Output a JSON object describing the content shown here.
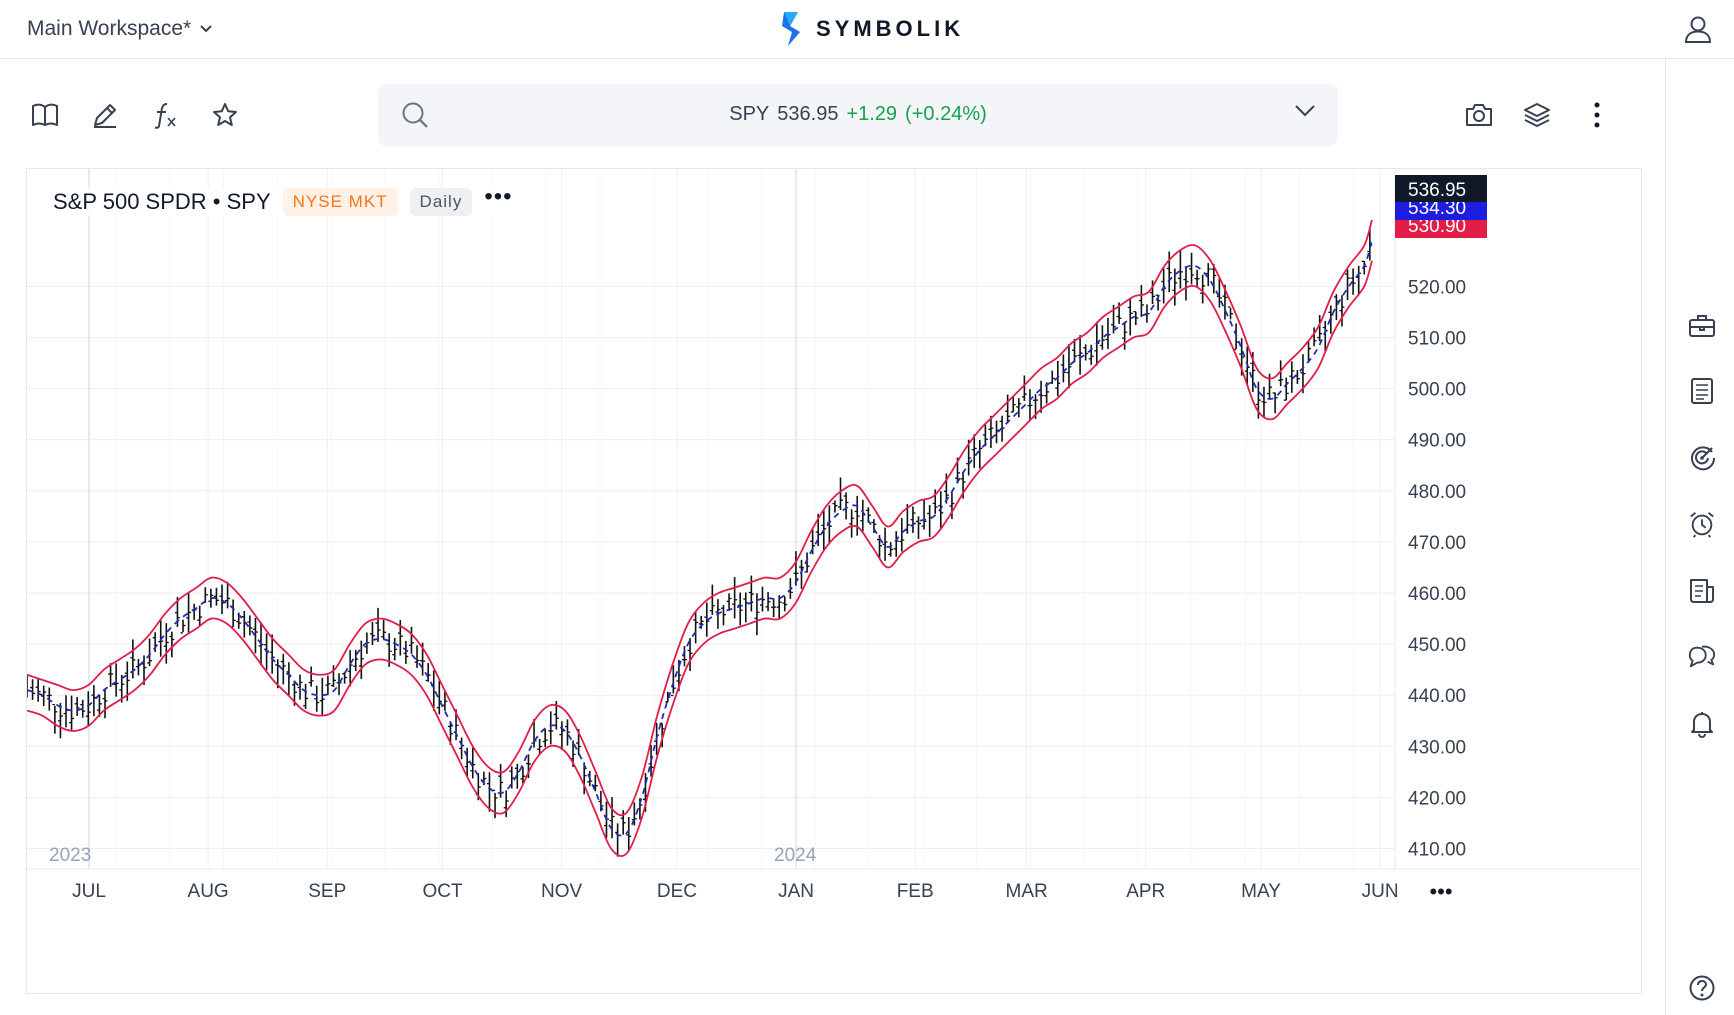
{
  "header": {
    "workspace_label": "Main Workspace*",
    "brand_name": "SYMBOLIK"
  },
  "quote": {
    "symbol": "SPY",
    "price": "536.95",
    "change": "+1.29",
    "change_pct": "(+0.24%)",
    "change_color": "#16a34a"
  },
  "chart_header": {
    "title": "S&P 500 SPDR • SPY",
    "exchange": "NYSE MKT",
    "interval": "Daily"
  },
  "toolbar": {
    "left_icons": [
      "book-icon",
      "pencil-icon",
      "function-icon",
      "star-icon"
    ],
    "right_icons": [
      "camera-icon",
      "layers-icon",
      "more-vertical-icon"
    ]
  },
  "sidebar_icons": [
    "briefcase-icon",
    "document-icon",
    "radar-icon",
    "alarm-icon",
    "news-icon",
    "chat-icon",
    "bell-icon",
    "help-icon"
  ],
  "chart_data": {
    "type": "line",
    "y_axis_labels": [
      "520.00",
      "510.00",
      "500.00",
      "490.00",
      "480.00",
      "470.00",
      "460.00",
      "450.00",
      "440.00",
      "430.00",
      "420.00",
      "410.00"
    ],
    "ylim": [
      406,
      541
    ],
    "x_month_labels": [
      "JUL",
      "AUG",
      "SEP",
      "OCT",
      "NOV",
      "DEC",
      "JAN",
      "FEB",
      "MAR",
      "APR",
      "MAY",
      "JUN"
    ],
    "year_labels": [
      "2023",
      "2024"
    ],
    "price_tags": [
      {
        "value": "536.95",
        "color": "#111827"
      },
      {
        "value": "534.30",
        "color": "#1d1de0"
      },
      {
        "value": "530.90",
        "color": "#e11d48"
      }
    ],
    "series": [
      {
        "name": "Price",
        "style": "ohlc-bars",
        "color": "#111111"
      },
      {
        "name": "Middle band",
        "style": "dashed",
        "color": "#1d2fb8"
      },
      {
        "name": "Upper band",
        "color": "#e11d48"
      },
      {
        "name": "Lower band",
        "color": "#e11d48"
      }
    ],
    "x_days": [
      0,
      4,
      8,
      12,
      16,
      20,
      24,
      28,
      32,
      36,
      40,
      44,
      48,
      52,
      56,
      60,
      64,
      68,
      72,
      76,
      80,
      84,
      88,
      92,
      96,
      100,
      104,
      108,
      112,
      116,
      120,
      124,
      128,
      132,
      136,
      140,
      144,
      148,
      152,
      156,
      160,
      164,
      168,
      172,
      176,
      180,
      184,
      188,
      192,
      196,
      200,
      204,
      208,
      212,
      216,
      220,
      224,
      228,
      232,
      236,
      240,
      244,
      248,
      252,
      256,
      260,
      264,
      268,
      272,
      276,
      280,
      284,
      288,
      292,
      296,
      300,
      304,
      308,
      312,
      316,
      320,
      324,
      328,
      332,
      336,
      340,
      344,
      348,
      350
    ],
    "middle_values": [
      441,
      440,
      438,
      437,
      438,
      441,
      443,
      445,
      448,
      452,
      455,
      457,
      459,
      458,
      455,
      451,
      447,
      444,
      441,
      440,
      441,
      446,
      450,
      451,
      450,
      448,
      444,
      438,
      432,
      426,
      422,
      421,
      425,
      431,
      434,
      433,
      428,
      421,
      414,
      413,
      420,
      432,
      442,
      450,
      454,
      456,
      457,
      458,
      459,
      459,
      462,
      468,
      473,
      476,
      477,
      473,
      469,
      472,
      474,
      475,
      479,
      484,
      488,
      491,
      494,
      497,
      500,
      502,
      505,
      507,
      510,
      512,
      514,
      515,
      520,
      523,
      524,
      521,
      515,
      508,
      500,
      498,
      501,
      504,
      508,
      515,
      520,
      524,
      529
    ],
    "upper_values": [
      444,
      443,
      442,
      441,
      442,
      445,
      447,
      449,
      452,
      456,
      459,
      461,
      463,
      462,
      459,
      455,
      451,
      448,
      445,
      444,
      445,
      450,
      454,
      455,
      454,
      452,
      448,
      442,
      436,
      430,
      426,
      425,
      429,
      435,
      438,
      437,
      432,
      425,
      418,
      417,
      424,
      436,
      446,
      454,
      458,
      460,
      461,
      462,
      463,
      463,
      466,
      472,
      477,
      480,
      481,
      477,
      473,
      476,
      478,
      479,
      483,
      488,
      492,
      495,
      498,
      501,
      504,
      506,
      509,
      511,
      514,
      516,
      518,
      519,
      524,
      527,
      528,
      525,
      519,
      512,
      504,
      502,
      505,
      508,
      512,
      519,
      524,
      528,
      533
    ],
    "lower_values": [
      437,
      436,
      434,
      433,
      434,
      437,
      439,
      441,
      444,
      448,
      451,
      453,
      455,
      454,
      451,
      447,
      443,
      440,
      437,
      436,
      437,
      442,
      446,
      447,
      446,
      444,
      440,
      434,
      428,
      422,
      418,
      417,
      421,
      427,
      430,
      429,
      424,
      417,
      410,
      409,
      416,
      428,
      438,
      446,
      450,
      452,
      453,
      454,
      455,
      455,
      458,
      464,
      469,
      472,
      473,
      469,
      465,
      468,
      470,
      471,
      475,
      480,
      484,
      487,
      490,
      493,
      496,
      498,
      501,
      503,
      506,
      508,
      510,
      511,
      516,
      519,
      520,
      517,
      511,
      504,
      496,
      494,
      497,
      500,
      504,
      511,
      516,
      520,
      525
    ]
  }
}
